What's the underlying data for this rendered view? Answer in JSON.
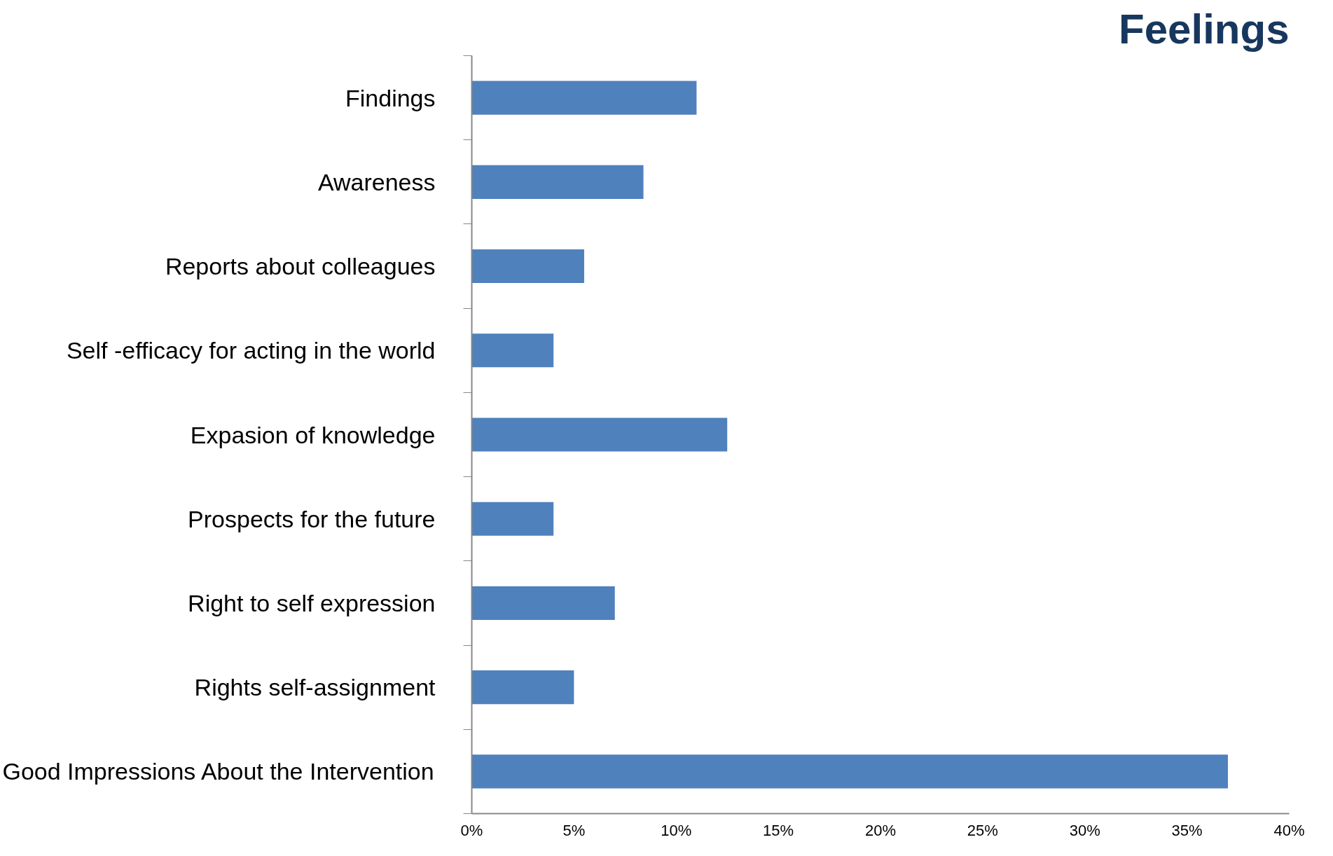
{
  "chart_data": {
    "type": "bar",
    "orientation": "horizontal",
    "title": "Feelings",
    "categories": [
      "Findings",
      "Awareness",
      "Reports about colleagues",
      "Self -efficacy for acting in the world",
      "Expasion of knowledge",
      "Prospects for the future",
      "Right to self expression",
      "Rights self-assignment",
      "Good Impressions About the Intervention"
    ],
    "values": [
      11,
      8.4,
      5.5,
      4,
      12.5,
      4,
      7,
      5,
      37
    ],
    "color": "#4f81bd",
    "xlim": [
      0,
      40
    ],
    "xticks": [
      {
        "value": 0,
        "label": "0%"
      },
      {
        "value": 5,
        "label": "5%"
      },
      {
        "value": 10,
        "label": "10%"
      },
      {
        "value": 15,
        "label": "15%"
      },
      {
        "value": 20,
        "label": "20%"
      },
      {
        "value": 25,
        "label": "25%"
      },
      {
        "value": 30,
        "label": "30%"
      },
      {
        "value": 35,
        "label": "35%"
      },
      {
        "value": 40,
        "label": "40%"
      }
    ],
    "grid": false
  }
}
